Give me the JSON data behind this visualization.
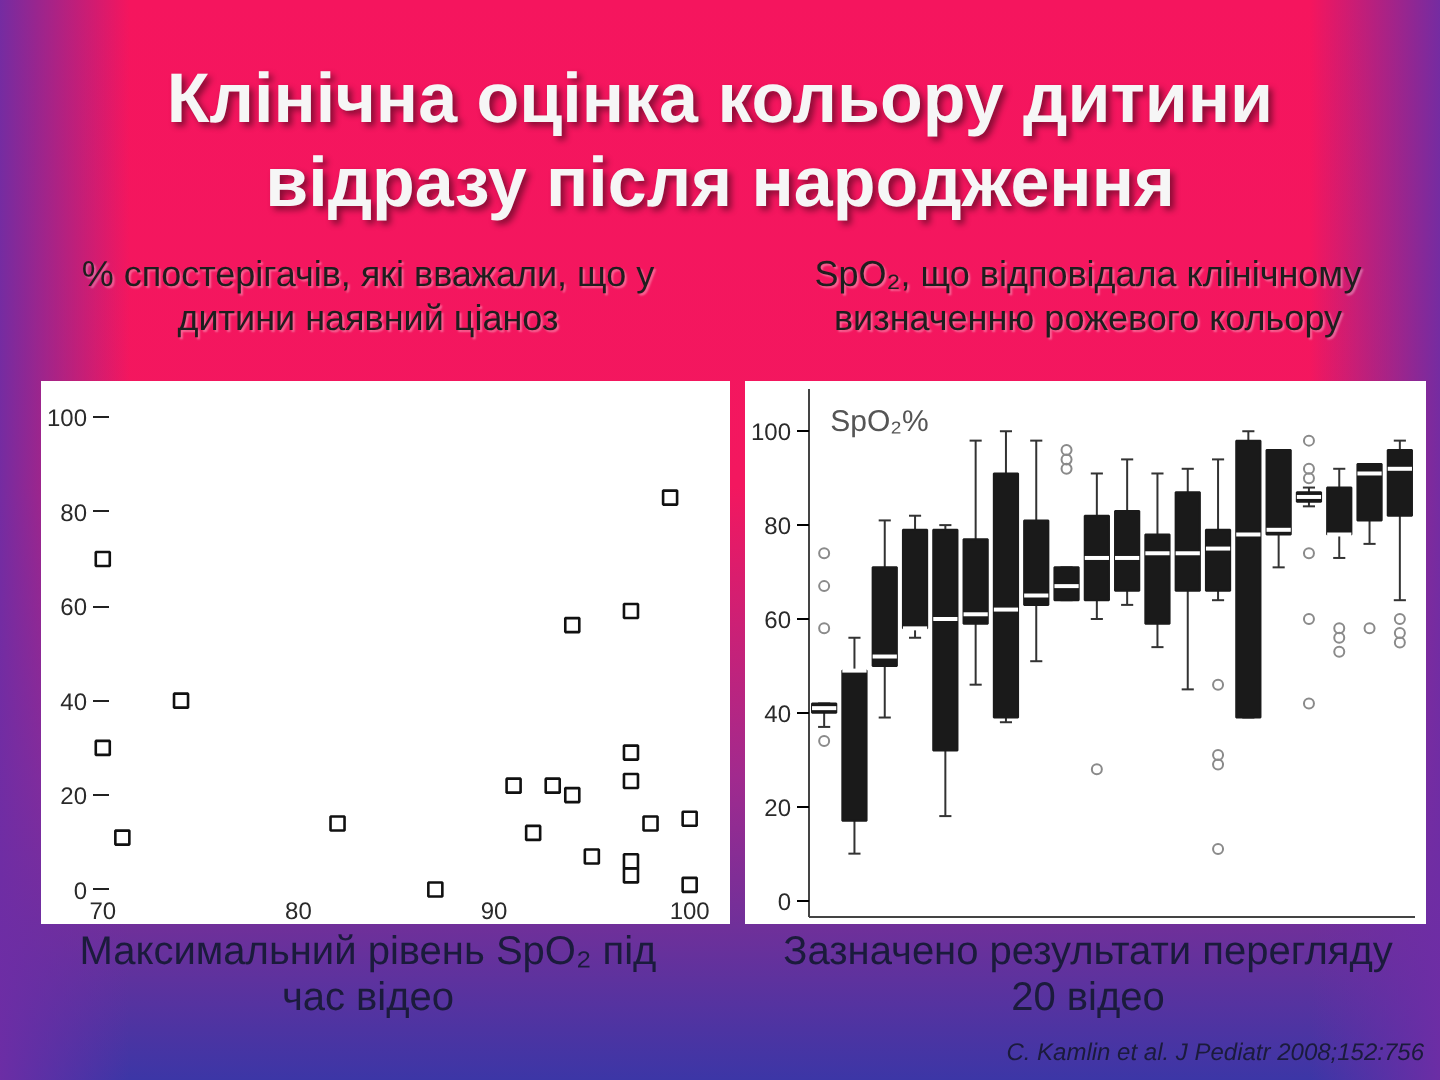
{
  "chart_data": [
    {
      "type": "scatter",
      "title": "Клінічна оцінка кольору дитини відразу після народження",
      "subtitle": "% спостерігачів, які вважали, що у дитини наявний ціаноз",
      "xlabel": "Максимальний рівень SpO₂ під час відео",
      "x": [
        99,
        70,
        94,
        97,
        74,
        70,
        97,
        97,
        91,
        93,
        94,
        71,
        82,
        92,
        95,
        97,
        97,
        98,
        100,
        100,
        87
      ],
      "values": [
        83,
        70,
        56,
        59,
        40,
        30,
        29,
        23,
        22,
        22,
        20,
        11,
        14,
        12,
        7,
        6,
        3,
        14,
        15,
        1,
        0
      ],
      "color": "#111111",
      "marker": "square",
      "xlim": [
        69.5,
        101.5
      ],
      "ylim": [
        -2,
        106
      ],
      "xticks": [
        70,
        80,
        90,
        100
      ],
      "yticks": [
        0,
        20,
        40,
        60,
        80,
        100
      ]
    },
    {
      "type": "box",
      "subtitle": "SpO₂, що відповідала клінічному визначенню рожевого кольору",
      "ylabel": "SpO₂%",
      "annotations": [
        "Зазначено результати перегляду 20 відео",
        "C. Kamlin et al. J Pediatr 2008;152:756"
      ],
      "categories": [
        null,
        null,
        null,
        null,
        null,
        null,
        null,
        null,
        null,
        null,
        null,
        null,
        null,
        null,
        null,
        null,
        null,
        null,
        null,
        null
      ],
      "color": "#1a1a1a",
      "ylim": [
        -3.5,
        109
      ],
      "yticks": [
        0,
        20,
        40,
        60,
        80,
        100
      ],
      "boxes": [
        {
          "low": 37,
          "q1": 40,
          "median": 41,
          "q3": 42,
          "high": 42,
          "outliers": [
            34,
            58,
            67,
            74
          ]
        },
        {
          "low": 10,
          "q1": 17,
          "median": 49,
          "q3": 49,
          "high": 56
        },
        {
          "low": 39,
          "q1": 50,
          "median": 52,
          "q3": 71,
          "high": 81
        },
        {
          "low": 56,
          "q1": 58,
          "median": 58,
          "q3": 79,
          "high": 82
        },
        {
          "low": 18,
          "q1": 32,
          "median": 60,
          "q3": 79,
          "high": 80
        },
        {
          "low": 46,
          "q1": 59,
          "median": 61,
          "q3": 77,
          "high": 98
        },
        {
          "low": 38,
          "q1": 39,
          "median": 62,
          "q3": 91,
          "high": 100
        },
        {
          "low": 51,
          "q1": 63,
          "median": 65,
          "q3": 81,
          "high": 98
        },
        {
          "low": 64,
          "q1": 64,
          "median": 67,
          "q3": 71,
          "high": 71,
          "outliers": [
            92,
            94,
            96
          ]
        },
        {
          "low": 60,
          "q1": 64,
          "median": 73,
          "q3": 82,
          "high": 91,
          "outliers": [
            28
          ]
        },
        {
          "low": 63,
          "q1": 66,
          "median": 73,
          "q3": 83,
          "high": 94
        },
        {
          "low": 54,
          "q1": 59,
          "median": 74,
          "q3": 78,
          "high": 91
        },
        {
          "low": 45,
          "q1": 66,
          "median": 74,
          "q3": 87,
          "high": 92
        },
        {
          "low": 64,
          "q1": 66,
          "median": 75,
          "q3": 79,
          "high": 94,
          "outliers": [
            11,
            29,
            31,
            46
          ]
        },
        {
          "low": 39,
          "q1": 39,
          "median": 78,
          "q3": 98,
          "high": 100
        },
        {
          "low": 71,
          "q1": 78,
          "median": 79,
          "q3": 96,
          "high": 96
        },
        {
          "low": 84,
          "q1": 85,
          "median": 86,
          "q3": 87,
          "high": 88,
          "outliers": [
            42,
            60,
            74,
            90,
            92,
            98
          ]
        },
        {
          "low": 73,
          "q1": 78,
          "median": 78,
          "q3": 88,
          "high": 92,
          "outliers": [
            53,
            56,
            58
          ]
        },
        {
          "low": 76,
          "q1": 81,
          "median": 91,
          "q3": 93,
          "high": 93,
          "outliers": [
            58
          ]
        },
        {
          "low": 64,
          "q1": 82,
          "median": 92,
          "q3": 96,
          "high": 98,
          "outliers": [
            55,
            57,
            60
          ]
        }
      ]
    }
  ]
}
